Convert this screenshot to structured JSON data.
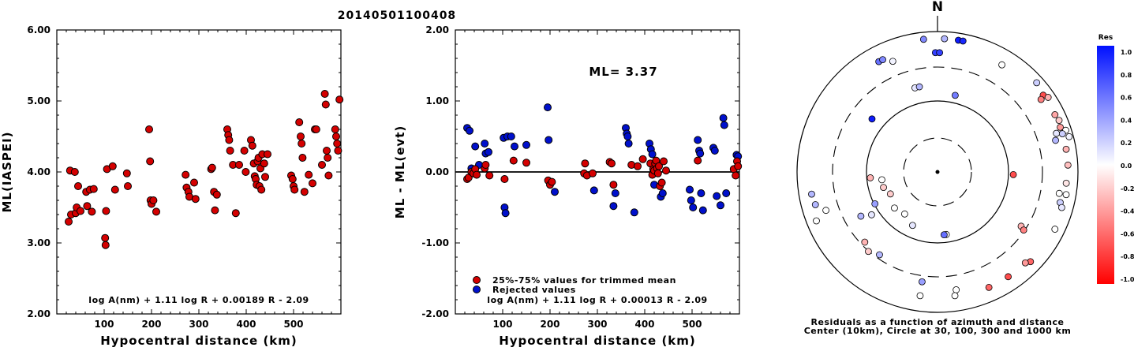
{
  "title": "20140501100408",
  "chart_data": [
    {
      "type": "scatter",
      "xlabel": "Hypocentral distance (km)",
      "ylabel": "ML(IASPEI)",
      "xlim": [
        0,
        600
      ],
      "ylim": [
        2,
        6
      ],
      "xticks": [
        "100",
        "200",
        "300",
        "400",
        "500"
      ],
      "yticks": [
        "2.00",
        "3.00",
        "4.00",
        "5.00",
        "6.00"
      ],
      "equation": "log A(nm) + 1.11 log R + 0.00189 R - 2.09",
      "points_color": "#d40000",
      "points": [
        [
          25,
          3.3
        ],
        [
          28,
          4.02
        ],
        [
          30,
          3.4
        ],
        [
          38,
          4.0
        ],
        [
          40,
          3.42
        ],
        [
          42,
          3.5
        ],
        [
          45,
          3.8
        ],
        [
          50,
          3.45
        ],
        [
          62,
          3.72
        ],
        [
          64,
          3.52
        ],
        [
          70,
          3.75
        ],
        [
          74,
          3.44
        ],
        [
          78,
          3.76
        ],
        [
          102,
          3.07
        ],
        [
          103,
          2.97
        ],
        [
          104,
          3.45
        ],
        [
          106,
          4.04
        ],
        [
          118,
          4.08
        ],
        [
          123,
          3.75
        ],
        [
          148,
          3.98
        ],
        [
          150,
          3.8
        ],
        [
          195,
          4.6
        ],
        [
          197,
          4.15
        ],
        [
          198,
          3.6
        ],
        [
          200,
          3.55
        ],
        [
          204,
          3.6
        ],
        [
          210,
          3.44
        ],
        [
          272,
          3.96
        ],
        [
          274,
          3.78
        ],
        [
          278,
          3.72
        ],
        [
          280,
          3.65
        ],
        [
          290,
          3.85
        ],
        [
          293,
          3.62
        ],
        [
          326,
          4.04
        ],
        [
          328,
          4.06
        ],
        [
          332,
          3.72
        ],
        [
          334,
          3.46
        ],
        [
          338,
          3.68
        ],
        [
          360,
          4.6
        ],
        [
          362,
          4.52
        ],
        [
          364,
          4.45
        ],
        [
          366,
          4.3
        ],
        [
          372,
          4.1
        ],
        [
          378,
          3.42
        ],
        [
          385,
          4.1
        ],
        [
          396,
          4.3
        ],
        [
          399,
          4.0
        ],
        [
          410,
          4.45
        ],
        [
          413,
          4.37
        ],
        [
          416,
          4.12
        ],
        [
          418,
          3.94
        ],
        [
          420,
          3.9
        ],
        [
          422,
          3.82
        ],
        [
          424,
          4.15
        ],
        [
          426,
          4.2
        ],
        [
          428,
          3.8
        ],
        [
          430,
          4.05
        ],
        [
          432,
          3.75
        ],
        [
          434,
          4.25
        ],
        [
          438,
          4.12
        ],
        [
          440,
          3.93
        ],
        [
          445,
          4.25
        ],
        [
          495,
          3.95
        ],
        [
          498,
          3.9
        ],
        [
          500,
          3.8
        ],
        [
          502,
          3.75
        ],
        [
          512,
          4.7
        ],
        [
          515,
          4.5
        ],
        [
          517,
          4.4
        ],
        [
          519,
          4.2
        ],
        [
          523,
          3.72
        ],
        [
          532,
          3.96
        ],
        [
          540,
          3.84
        ],
        [
          545,
          4.6
        ],
        [
          548,
          4.6
        ],
        [
          560,
          4.1
        ],
        [
          566,
          5.1
        ],
        [
          568,
          4.95
        ],
        [
          570,
          4.3
        ],
        [
          572,
          4.2
        ],
        [
          574,
          3.95
        ],
        [
          588,
          4.6
        ],
        [
          590,
          4.5
        ],
        [
          592,
          4.4
        ],
        [
          594,
          4.3
        ],
        [
          597,
          5.02
        ]
      ]
    },
    {
      "type": "scatter",
      "xlabel": "Hypocentral distance (km)",
      "ylabel": "ML - ML(evt)",
      "xlim": [
        0,
        600
      ],
      "ylim": [
        -2,
        2
      ],
      "xticks": [
        "100",
        "200",
        "300",
        "400",
        "500"
      ],
      "yticks": [
        "-2.00",
        "-1.00",
        "0.00",
        "1.00",
        "2.00"
      ],
      "annotation": "ML= 3.37",
      "equation": "log A(nm) + 1.11 log R + 0.00013 R - 2.09",
      "legend": [
        {
          "label": "25%-75% values for trimmed mean",
          "color": "#d40000"
        },
        {
          "label": "Rejected values",
          "color": "#0010cc"
        }
      ],
      "series": [
        {
          "name": "25%-75% values for trimmed mean",
          "color": "#d40000",
          "points": [
            [
              25,
              -0.1
            ],
            [
              28,
              -0.08
            ],
            [
              34,
              0.0
            ],
            [
              38,
              -0.02
            ],
            [
              42,
              0.04
            ],
            [
              45,
              -0.04
            ],
            [
              62,
              0.05
            ],
            [
              64,
              0.1
            ],
            [
              72,
              -0.05
            ],
            [
              104,
              -0.1
            ],
            [
              123,
              0.16
            ],
            [
              150,
              0.13
            ],
            [
              196,
              -0.12
            ],
            [
              200,
              -0.18
            ],
            [
              204,
              -0.14
            ],
            [
              272,
              -0.02
            ],
            [
              274,
              0.12
            ],
            [
              278,
              -0.05
            ],
            [
              290,
              -0.02
            ],
            [
              326,
              0.14
            ],
            [
              330,
              0.12
            ],
            [
              334,
              -0.18
            ],
            [
              372,
              0.1
            ],
            [
              385,
              0.08
            ],
            [
              396,
              0.18
            ],
            [
              412,
              0.12
            ],
            [
              416,
              -0.04
            ],
            [
              418,
              0.04
            ],
            [
              420,
              0.02
            ],
            [
              422,
              0.12
            ],
            [
              424,
              0.16
            ],
            [
              426,
              0.05
            ],
            [
              428,
              -0.02
            ],
            [
              430,
              0.08
            ],
            [
              432,
              -0.2
            ],
            [
              436,
              -0.15
            ],
            [
              440,
              0.15
            ],
            [
              445,
              0.02
            ],
            [
              512,
              0.16
            ],
            [
              588,
              0.04
            ],
            [
              592,
              -0.05
            ],
            [
              595,
              0.15
            ],
            [
              597,
              0.08
            ]
          ]
        },
        {
          "name": "Rejected values",
          "color": "#0010cc",
          "points": [
            [
              25,
              0.62
            ],
            [
              30,
              0.58
            ],
            [
              34,
              0.05
            ],
            [
              42,
              0.36
            ],
            [
              50,
              0.1
            ],
            [
              62,
              0.4
            ],
            [
              64,
              0.26
            ],
            [
              70,
              0.28
            ],
            [
              102,
              0.48
            ],
            [
              104,
              -0.5
            ],
            [
              106,
              -0.58
            ],
            [
              110,
              0.5
            ],
            [
              118,
              0.5
            ],
            [
              125,
              0.36
            ],
            [
              150,
              0.38
            ],
            [
              195,
              0.91
            ],
            [
              197,
              0.45
            ],
            [
              200,
              -0.15
            ],
            [
              210,
              -0.28
            ],
            [
              293,
              -0.26
            ],
            [
              334,
              -0.48
            ],
            [
              338,
              -0.3
            ],
            [
              360,
              0.62
            ],
            [
              362,
              0.54
            ],
            [
              364,
              0.5
            ],
            [
              366,
              0.4
            ],
            [
              378,
              -0.57
            ],
            [
              410,
              0.4
            ],
            [
              413,
              0.32
            ],
            [
              416,
              0.25
            ],
            [
              420,
              -0.18
            ],
            [
              434,
              -0.35
            ],
            [
              438,
              -0.3
            ],
            [
              495,
              -0.25
            ],
            [
              498,
              -0.4
            ],
            [
              502,
              -0.5
            ],
            [
              512,
              0.45
            ],
            [
              515,
              0.3
            ],
            [
              517,
              0.26
            ],
            [
              519,
              -0.3
            ],
            [
              523,
              -0.54
            ],
            [
              545,
              0.34
            ],
            [
              548,
              0.3
            ],
            [
              552,
              -0.34
            ],
            [
              560,
              -0.47
            ],
            [
              566,
              0.76
            ],
            [
              568,
              0.66
            ],
            [
              572,
              -0.3
            ],
            [
              594,
              0.24
            ],
            [
              597,
              0.22
            ]
          ]
        }
      ]
    },
    {
      "type": "scatter",
      "subtype": "polar-residuals",
      "north_label": "N",
      "caption_line1": "Residuals as a function of azimuth and distance",
      "caption_line2": "Center (10km), Circle at 30, 100, 300 and 1000 km",
      "colorbar_title": "Res",
      "colorbar_labels": [
        "1.0",
        "0.8",
        "0.6",
        "0.4",
        "0.2",
        "0.0",
        "-0.2",
        "-0.4",
        "-0.6",
        "-0.8",
        "-1.0"
      ],
      "points": [
        {
          "az": 3,
          "r": 0.95,
          "res": 0.3
        },
        {
          "az": 9,
          "r": 0.95,
          "res": 0.95
        },
        {
          "az": 11,
          "r": 0.95,
          "res": 0.9
        },
        {
          "az": -6,
          "r": 0.95,
          "res": 0.5
        },
        {
          "az": -1,
          "r": 0.85,
          "res": 0.8
        },
        {
          "az": 1,
          "r": 0.85,
          "res": 0.8
        },
        {
          "az": -28,
          "r": 0.89,
          "res": 0.6
        },
        {
          "az": -26,
          "r": 0.89,
          "res": 0.5
        },
        {
          "az": -22,
          "r": 0.85,
          "res": 0.05
        },
        {
          "az": -15,
          "r": 0.62,
          "res": 0.1
        },
        {
          "az": -12,
          "r": 0.62,
          "res": 0.3
        },
        {
          "az": 13,
          "r": 0.56,
          "res": 0.55
        },
        {
          "az": -51,
          "r": 0.6,
          "res": 0.95
        },
        {
          "az": 31,
          "r": 0.89,
          "res": 0.0
        },
        {
          "az": 48,
          "r": 0.95,
          "res": 0.2
        },
        {
          "az": 54,
          "r": 0.93,
          "res": -0.7
        },
        {
          "az": 55,
          "r": 0.9,
          "res": -0.5
        },
        {
          "az": 56,
          "r": 0.95,
          "res": -0.3
        },
        {
          "az": 64,
          "r": 0.93,
          "res": -0.35
        },
        {
          "az": 67,
          "r": 0.94,
          "res": -0.2
        },
        {
          "az": 70,
          "r": 0.93,
          "res": -0.4
        },
        {
          "az": 72,
          "r": 0.96,
          "res": 0.0
        },
        {
          "az": 72,
          "r": 0.89,
          "res": 0.1
        },
        {
          "az": 73,
          "r": 0.93,
          "res": 0.2
        },
        {
          "az": 75,
          "r": 0.97,
          "res": 0.05
        },
        {
          "az": 75,
          "r": 0.87,
          "res": 0.3
        },
        {
          "az": 80,
          "r": 0.93,
          "res": -0.3
        },
        {
          "az": 87,
          "r": 0.93,
          "res": -0.25
        },
        {
          "az": 92,
          "r": 0.54,
          "res": -0.7
        },
        {
          "az": 95,
          "r": 0.92,
          "res": -0.1
        },
        {
          "az": 100,
          "r": 0.93,
          "res": 0.0
        },
        {
          "az": 100,
          "r": 0.88,
          "res": 0.0
        },
        {
          "az": 104,
          "r": 0.9,
          "res": 0.2
        },
        {
          "az": 106,
          "r": 0.92,
          "res": 0.1
        },
        {
          "az": 116,
          "r": 0.93,
          "res": 0.0
        },
        {
          "az": 123,
          "r": 0.71,
          "res": -0.3
        },
        {
          "az": 124,
          "r": 0.74,
          "res": -0.5
        },
        {
          "az": 134,
          "r": 0.92,
          "res": -0.6
        },
        {
          "az": 136,
          "r": 0.9,
          "res": -0.4
        },
        {
          "az": 146,
          "r": 0.9,
          "res": -0.7
        },
        {
          "az": 156,
          "r": 0.9,
          "res": -0.6
        },
        {
          "az": 171,
          "r": 0.85,
          "res": 0.0
        },
        {
          "az": 172,
          "r": 0.89,
          "res": 0.0
        },
        {
          "az": 172,
          "r": 0.45,
          "res": 0.0
        },
        {
          "az": 174,
          "r": 0.45,
          "res": 0.6
        },
        {
          "az": -172,
          "r": 0.89,
          "res": 0.0
        },
        {
          "az": -172,
          "r": 0.79,
          "res": 0.4
        },
        {
          "az": -145,
          "r": 0.72,
          "res": 0.3
        },
        {
          "az": -139,
          "r": 0.75,
          "res": -0.2
        },
        {
          "az": -134,
          "r": 0.72,
          "res": -0.3
        },
        {
          "az": -120,
          "r": 0.63,
          "res": 0.3
        },
        {
          "az": -123,
          "r": 0.56,
          "res": 0.1
        },
        {
          "az": -117,
          "r": 0.5,
          "res": 0.4
        },
        {
          "az": -112,
          "r": 0.93,
          "res": 0.0
        },
        {
          "az": -109,
          "r": 0.84,
          "res": 0.0
        },
        {
          "az": -105,
          "r": 0.9,
          "res": 0.3
        },
        {
          "az": -100,
          "r": 0.91,
          "res": 0.3
        },
        {
          "az": -142,
          "r": 0.38,
          "res": 0.0
        },
        {
          "az": -155,
          "r": 0.42,
          "res": 0.1
        },
        {
          "az": -130,
          "r": 0.4,
          "res": 0.0
        },
        {
          "az": -115,
          "r": 0.37,
          "res": -0.2
        },
        {
          "az": -106,
          "r": 0.4,
          "res": -0.2
        },
        {
          "az": -98,
          "r": 0.4,
          "res": 0.0
        },
        {
          "az": -95,
          "r": 0.48,
          "res": -0.3
        }
      ]
    }
  ]
}
